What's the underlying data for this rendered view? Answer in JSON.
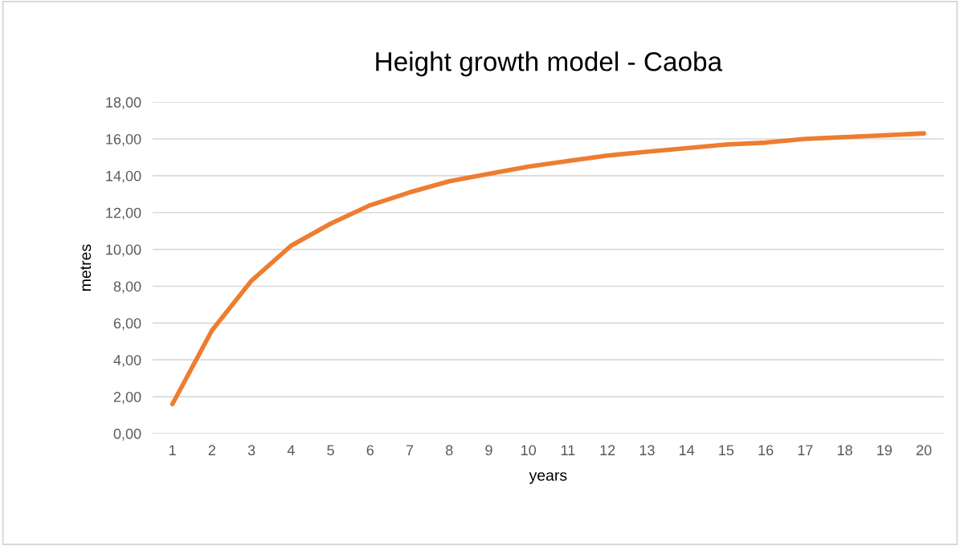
{
  "chart_data": {
    "type": "line",
    "title": "Height growth model - Caoba",
    "xlabel": "years",
    "ylabel": "metres",
    "categories": [
      "1",
      "2",
      "3",
      "4",
      "5",
      "6",
      "7",
      "8",
      "9",
      "10",
      "11",
      "12",
      "13",
      "14",
      "15",
      "16",
      "17",
      "18",
      "19",
      "20"
    ],
    "series": [
      {
        "color": "#ed7d31",
        "values": [
          1.6,
          5.6,
          8.3,
          10.2,
          11.4,
          12.4,
          13.1,
          13.7,
          14.1,
          14.5,
          14.8,
          15.1,
          15.3,
          15.5,
          15.7,
          15.8,
          16.0,
          16.1,
          16.2,
          16.3
        ]
      }
    ],
    "ylim": [
      0,
      18
    ],
    "yticks": [
      {
        "value": 0,
        "label": "0,00"
      },
      {
        "value": 2,
        "label": "2,00"
      },
      {
        "value": 4,
        "label": "4,00"
      },
      {
        "value": 6,
        "label": "6,00"
      },
      {
        "value": 8,
        "label": "8,00"
      },
      {
        "value": 10,
        "label": "10,00"
      },
      {
        "value": 12,
        "label": "12,00"
      },
      {
        "value": 14,
        "label": "14,00"
      },
      {
        "value": 16,
        "label": "16,00"
      },
      {
        "value": 18,
        "label": "18,00"
      }
    ],
    "grid": "y",
    "marker": "none",
    "line_style": "solid"
  }
}
